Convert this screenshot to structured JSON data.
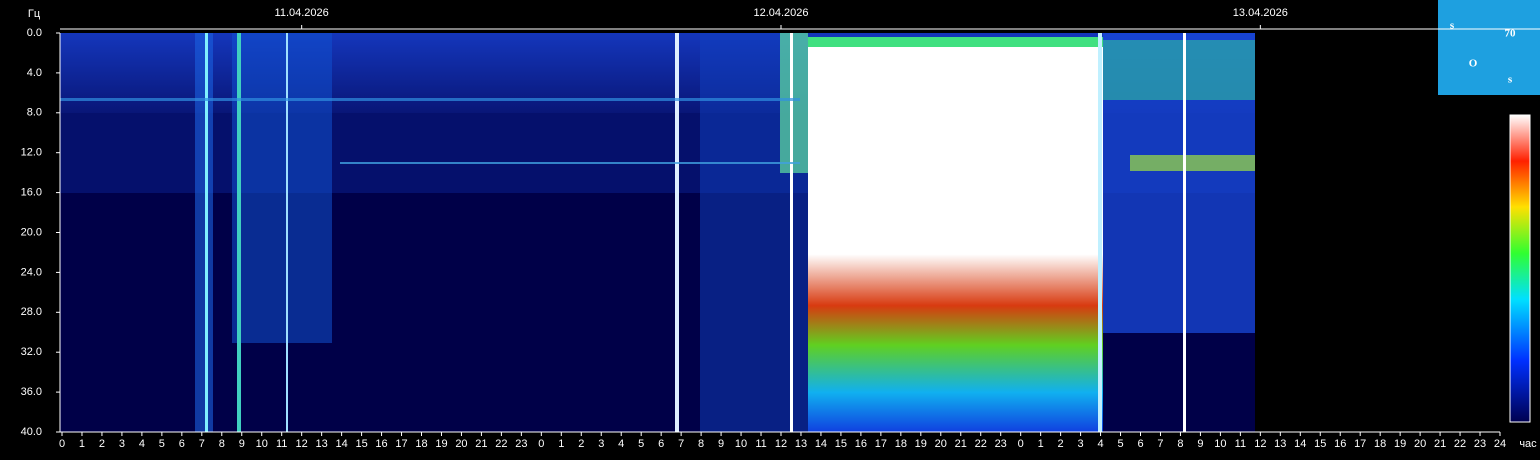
{
  "chart_data": {
    "type": "spectrogram",
    "y_label": "Гц",
    "x_label": "час",
    "xlim": [
      0,
      72
    ],
    "xticks": [
      0,
      1,
      2,
      3,
      4,
      5,
      6,
      7,
      8,
      9,
      10,
      11,
      12,
      13,
      14,
      15,
      16,
      17,
      18,
      19,
      20,
      21,
      22,
      23,
      {
        "value": 24,
        "label": "0"
      },
      {
        "value": 25,
        "label": "1"
      },
      {
        "value": 26,
        "label": "2"
      },
      {
        "value": 27,
        "label": "3"
      },
      {
        "value": 28,
        "label": "4"
      },
      {
        "value": 29,
        "label": "5"
      },
      {
        "value": 30,
        "label": "6"
      },
      {
        "value": 31,
        "label": "7"
      },
      {
        "value": 32,
        "label": "8"
      },
      {
        "value": 33,
        "label": "9"
      },
      {
        "value": 34,
        "label": "10"
      },
      {
        "value": 35,
        "label": "11"
      },
      {
        "value": 36,
        "label": "12"
      },
      {
        "value": 37,
        "label": "13"
      },
      {
        "value": 38,
        "label": "14"
      },
      {
        "value": 39,
        "label": "15"
      },
      {
        "value": 40,
        "label": "16"
      },
      {
        "value": 41,
        "label": "17"
      },
      {
        "value": 42,
        "label": "18"
      },
      {
        "value": 43,
        "label": "19"
      },
      {
        "value": 44,
        "label": "20"
      },
      {
        "value": 45,
        "label": "21"
      },
      {
        "value": 46,
        "label": "22"
      },
      {
        "value": 47,
        "label": "23"
      },
      {
        "value": 48,
        "label": "0"
      },
      {
        "value": 49,
        "label": "1"
      },
      {
        "value": 50,
        "label": "2"
      },
      {
        "value": 51,
        "label": "3"
      },
      {
        "value": 52,
        "label": "4"
      },
      {
        "value": 53,
        "label": "5"
      },
      {
        "value": 54,
        "label": "6"
      },
      {
        "value": 55,
        "label": "7"
      },
      {
        "value": 56,
        "label": "8"
      },
      {
        "value": 57,
        "label": "9"
      },
      {
        "value": 58,
        "label": "10"
      },
      {
        "value": 59,
        "label": "11"
      },
      {
        "value": 60,
        "label": "12"
      },
      {
        "value": 61,
        "label": "13"
      },
      {
        "value": 62,
        "label": "14"
      },
      {
        "value": 63,
        "label": "15"
      },
      {
        "value": 64,
        "label": "16"
      },
      {
        "value": 65,
        "label": "17"
      },
      {
        "value": 66,
        "label": "18"
      },
      {
        "value": 67,
        "label": "19"
      },
      {
        "value": 68,
        "label": "20"
      },
      {
        "value": 69,
        "label": "21"
      },
      {
        "value": 70,
        "label": "22"
      },
      {
        "value": 71,
        "label": "23"
      },
      {
        "value": 72,
        "label": "24"
      }
    ],
    "ylim": [
      0,
      40
    ],
    "yticks": [
      {
        "value": 0,
        "label": "0.0"
      },
      {
        "value": 4,
        "label": "4.0"
      },
      {
        "value": 8,
        "label": "8.0"
      },
      {
        "value": 12,
        "label": "12.0"
      },
      {
        "value": 16,
        "label": "16.0"
      },
      {
        "value": 20,
        "label": "20.0"
      },
      {
        "value": 24,
        "label": "24.0"
      },
      {
        "value": 28,
        "label": "28.0"
      },
      {
        "value": 32,
        "label": "32.0"
      },
      {
        "value": 36,
        "label": "36.0"
      },
      {
        "value": 40,
        "label": "40.0"
      }
    ],
    "date_ticks": [
      {
        "value": 12,
        "label": "11.04.2026"
      },
      {
        "value": 36,
        "label": "12.04.2026"
      },
      {
        "value": 60,
        "label": "13.04.2026"
      }
    ],
    "logo": [
      "s",
      "70",
      "O",
      "s"
    ]
  }
}
